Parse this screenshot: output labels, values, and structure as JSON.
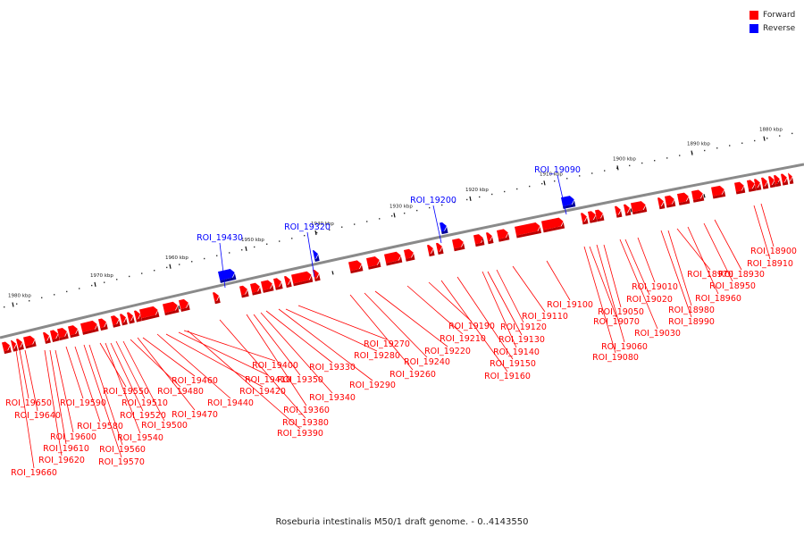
{
  "legend": {
    "forward_label": "Forward",
    "reverse_label": "Reverse",
    "forward_color": "#ff0000",
    "reverse_color": "#0000ff"
  },
  "caption": "Roseburia intestinalis M50/1 draft genome. - 0..4143550",
  "axis": {
    "unit": "kbp",
    "ticks": [
      1980,
      1970,
      1960,
      1950,
      1940,
      1930,
      1920,
      1910,
      1900,
      1890,
      1880
    ]
  },
  "features": {
    "reverse": [
      "ROI_19430",
      "ROI_19320",
      "ROI_19200",
      "ROI_19090"
    ],
    "forward": [
      "ROI_19660",
      "ROI_19650",
      "ROI_19640",
      "ROI_19620",
      "ROI_19610",
      "ROI_19600",
      "ROI_19590",
      "ROI_19580",
      "ROI_19570",
      "ROI_19560",
      "ROI_19550",
      "ROI_19540",
      "ROI_19520",
      "ROI_19510",
      "ROI_19500",
      "ROI_19480",
      "ROI_19470",
      "ROI_19460",
      "ROI_19440",
      "ROI_19420",
      "ROI_19410",
      "ROI_19400",
      "ROI_19390",
      "ROI_19380",
      "ROI_19360",
      "ROI_19350",
      "ROI_19340",
      "ROI_19330",
      "ROI_19290",
      "ROI_19280",
      "ROI_19270",
      "ROI_19260",
      "ROI_19240",
      "ROI_19220",
      "ROI_19210",
      "ROI_19190",
      "ROI_19160",
      "ROI_19150",
      "ROI_19140",
      "ROI_19130",
      "ROI_19120",
      "ROI_19110",
      "ROI_19100",
      "ROI_19080",
      "ROI_19070",
      "ROI_19060",
      "ROI_19050",
      "ROI_19030",
      "ROI_19020",
      "ROI_19010",
      "ROI_18990",
      "ROI_18980",
      "ROI_18970",
      "ROI_18960",
      "ROI_18950",
      "ROI_18930",
      "ROI_18910",
      "ROI_18900"
    ]
  }
}
